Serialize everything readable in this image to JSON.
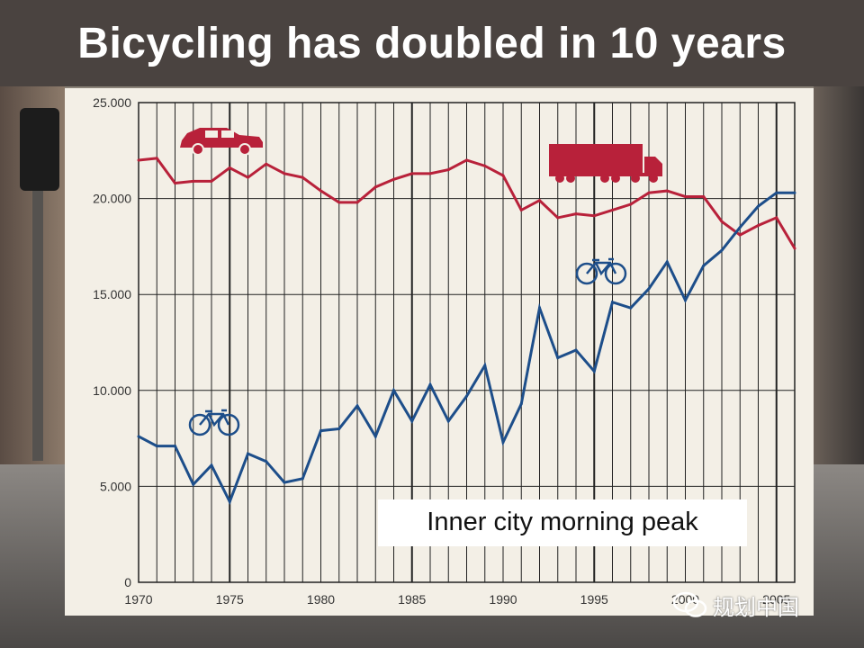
{
  "slide": {
    "title": "Bicycling has doubled in 10 years"
  },
  "watermark": {
    "text": "规划中国",
    "icon": "wechat-icon"
  },
  "colors": {
    "title_bar": "#4a4340",
    "title_text": "#ffffff",
    "chart_bg": "#f3efe6",
    "motor_series": "#b8213a",
    "bicycle_series": "#1d4e8a",
    "grid": "#222222"
  },
  "chart_data": {
    "type": "line",
    "title": "",
    "xlabel": "",
    "ylabel": "",
    "annotation": "Inner city morning peak",
    "xlim": [
      1970,
      2006
    ],
    "ylim": [
      0,
      25000
    ],
    "x_ticks": [
      1970,
      1975,
      1980,
      1985,
      1990,
      1995,
      2000,
      2005
    ],
    "x_tick_labels": [
      "1970",
      "1975",
      "1980",
      "1985",
      "1990",
      "1995",
      "2000",
      "2005"
    ],
    "y_ticks": [
      0,
      5000,
      10000,
      15000,
      20000,
      25000
    ],
    "y_tick_labels": [
      "0",
      "5.000",
      "10.000",
      "15.000",
      "20.000",
      "25.000"
    ],
    "grid": true,
    "x": [
      1970,
      1971,
      1972,
      1973,
      1974,
      1975,
      1976,
      1977,
      1978,
      1979,
      1980,
      1981,
      1982,
      1983,
      1984,
      1985,
      1986,
      1987,
      1988,
      1989,
      1990,
      1991,
      1992,
      1993,
      1994,
      1995,
      1996,
      1997,
      1998,
      1999,
      2000,
      2001,
      2002,
      2003,
      2004,
      2005,
      2006
    ],
    "series": [
      {
        "id": "motor",
        "icons": [
          "car-icon",
          "truck-icon"
        ],
        "color": "#b8213a",
        "values": [
          22000,
          22100,
          20800,
          20900,
          20900,
          21600,
          21100,
          21800,
          21300,
          21100,
          20400,
          19800,
          19800,
          20600,
          21000,
          21300,
          21300,
          21500,
          22000,
          21700,
          21200,
          19400,
          19900,
          19000,
          19200,
          19100,
          19400,
          19700,
          20300,
          20400,
          20100,
          20100,
          18800,
          18100,
          18600,
          19000,
          17400
        ]
      },
      {
        "id": "bicycle",
        "icons": [
          "bicycle-icon",
          "bicycle-icon"
        ],
        "color": "#1d4e8a",
        "values": [
          7600,
          7100,
          7100,
          5100,
          6100,
          4200,
          6700,
          6300,
          5200,
          5400,
          7900,
          8000,
          9200,
          7600,
          10000,
          8400,
          10300,
          8400,
          9700,
          11300,
          7300,
          9300,
          14300,
          11700,
          12100,
          11000,
          14600,
          14300,
          15300,
          16700,
          14700,
          16500,
          17300,
          18500,
          19600,
          20300,
          20300
        ]
      }
    ]
  }
}
